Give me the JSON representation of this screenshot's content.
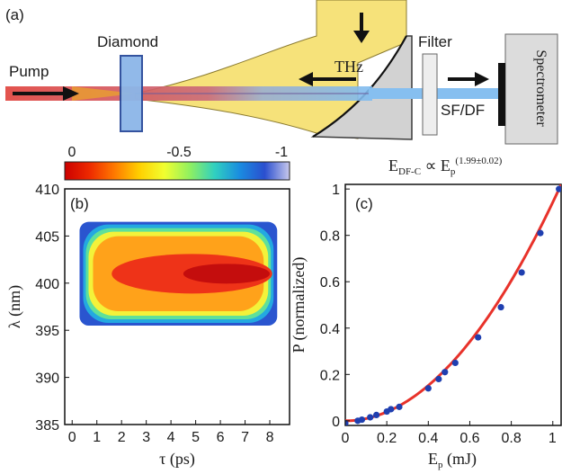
{
  "setup": {
    "panel_label": "(a)",
    "labels": {
      "pump": "Pump",
      "diamond": "Diamond",
      "thz": "THz",
      "filter": "Filter",
      "sfdf": "SF/DF",
      "spectrometer": "Spectrometer"
    }
  },
  "colorbar": {
    "ticks": [
      "0",
      "-0.5",
      "-1"
    ],
    "stops": [
      "#cc0000",
      "#ee2a00",
      "#ff7a00",
      "#ffd000",
      "#f0ff30",
      "#90f060",
      "#30d0c0",
      "#1a8ce0",
      "#2a4fcf",
      "#c8c8ec"
    ],
    "range": [
      0,
      -1
    ]
  },
  "panel_b": {
    "label": "(b)",
    "ylabel": "λ (nm)",
    "xlabel": "τ (ps)",
    "yticks": [
      "410",
      "405",
      "400",
      "395",
      "390",
      "385"
    ],
    "xticks": [
      "0",
      "1",
      "2",
      "3",
      "4",
      "5",
      "6",
      "7",
      "8"
    ]
  },
  "panel_c": {
    "label": "(c)",
    "equation": {
      "lhs": "E",
      "lhs_sub": "DF-C",
      "rel": " ∝ E",
      "rhs_sub": "p",
      "exponent": "(1.99±0.02)"
    },
    "ylabel": "P (normalized)",
    "xlabel": "E",
    "xlabel_sub": "p",
    "xlabel_unit": " (mJ)",
    "yticks": [
      "0",
      "0.2",
      "0.4",
      "0.6",
      "0.8",
      "1"
    ],
    "xticks": [
      "0",
      "0.2",
      "0.4",
      "0.6",
      "0.8",
      "1"
    ]
  },
  "chart_data": [
    {
      "type": "heatmap",
      "x": {
        "label": "τ (ps)",
        "range": [
          -0.3,
          8.8
        ]
      },
      "y": {
        "label": "λ (nm)",
        "range": [
          385,
          410
        ]
      },
      "extent": {
        "tau": [
          0.3,
          8.3
        ],
        "lambda": [
          395.5,
          406.5
        ]
      },
      "peak": {
        "tau": [
          4.5,
          8.0
        ],
        "lambda": 401
      },
      "color_range": [
        0,
        -1
      ]
    },
    {
      "type": "scatter",
      "xlabel": "E_p (mJ)",
      "ylabel": "P (normalized)",
      "xlim": [
        0,
        1.04
      ],
      "ylim": [
        -0.02,
        1.02
      ],
      "points": [
        [
          0.0,
          -0.01
        ],
        [
          0.06,
          0.0
        ],
        [
          0.08,
          0.005
        ],
        [
          0.12,
          0.015
        ],
        [
          0.15,
          0.025
        ],
        [
          0.2,
          0.04
        ],
        [
          0.22,
          0.05
        ],
        [
          0.26,
          0.06
        ],
        [
          0.4,
          0.14
        ],
        [
          0.45,
          0.18
        ],
        [
          0.48,
          0.21
        ],
        [
          0.53,
          0.25
        ],
        [
          0.64,
          0.36
        ],
        [
          0.75,
          0.49
        ],
        [
          0.85,
          0.64
        ],
        [
          0.94,
          0.81
        ],
        [
          1.03,
          1.0
        ]
      ],
      "fit": {
        "exponent": 1.99,
        "exponent_err": 0.02,
        "scale": 1.0,
        "x_ref": 1.03
      }
    }
  ]
}
